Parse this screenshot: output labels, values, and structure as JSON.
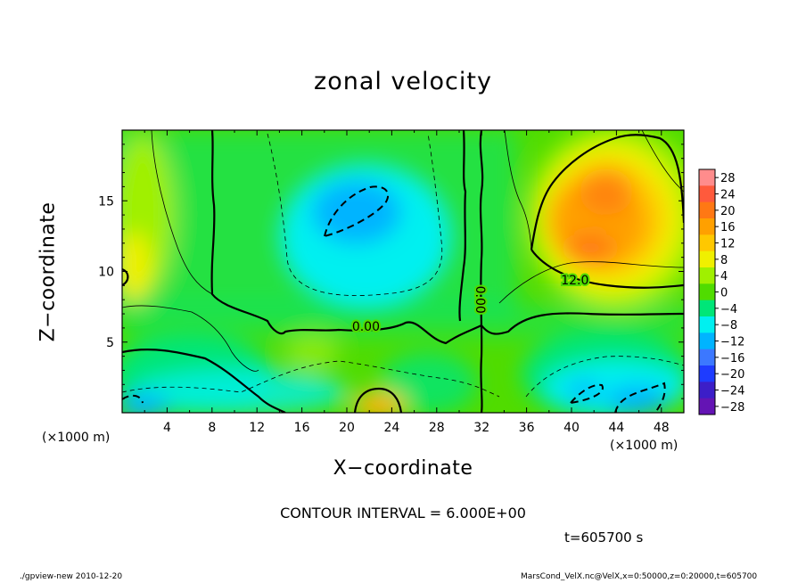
{
  "chart_data": {
    "type": "heatmap",
    "title": "zonal velocity",
    "xlabel": "X−coordinate",
    "ylabel": "Z−coordinate",
    "x_unit_left": "(×1000 m)",
    "x_unit_right": "(×1000 m)",
    "xlim": [
      0,
      50
    ],
    "ylim": [
      0,
      20
    ],
    "x_ticks": [
      4,
      8,
      12,
      16,
      20,
      24,
      28,
      32,
      36,
      40,
      44,
      48
    ],
    "x_tick_labels": [
      "4",
      "8",
      "12",
      "16",
      "20",
      "24",
      "28",
      "32",
      "36",
      "40",
      "44",
      "48"
    ],
    "y_ticks": [
      5,
      10,
      15
    ],
    "y_tick_labels": [
      "5",
      "10",
      "15"
    ],
    "colorbar": {
      "levels": [
        28,
        24,
        20,
        16,
        12,
        8,
        4,
        0,
        -4,
        -8,
        -12,
        -16,
        -20,
        -24,
        -28
      ],
      "labels": [
        "28",
        "24",
        "20",
        "16",
        "12",
        "8",
        "4",
        "0",
        "−4",
        "−8",
        "−12",
        "−16",
        "−20",
        "−24",
        "−28"
      ],
      "colors": [
        "#ff8c8c",
        "#ff5a3c",
        "#ff7814",
        "#ffa000",
        "#ffc800",
        "#f0f000",
        "#a0f000",
        "#50dc00",
        "#00e678",
        "#00f0f0",
        "#00b4ff",
        "#3c78ff",
        "#1e3cff",
        "#3c1ec8",
        "#6414b4"
      ]
    },
    "contour_labels": [
      {
        "text": "0.00",
        "x": 21.7,
        "z": 5.8,
        "rotate": 0
      },
      {
        "text": "0.00",
        "x": 31.5,
        "z": 8.0,
        "rotate": 90
      },
      {
        "text": "12.0",
        "x": 40.3,
        "z": 9.1,
        "rotate": 0
      }
    ],
    "contour_interval": "CONTOUR INTERVAL = 6.000E+00",
    "time_label": "t=605700 s",
    "grid": false
  },
  "footer": {
    "left": "./gpview-new   2010-12-20",
    "right": "MarsCond_VelX.nc@VelX,x=0:50000,z=0:20000,t=605700"
  }
}
